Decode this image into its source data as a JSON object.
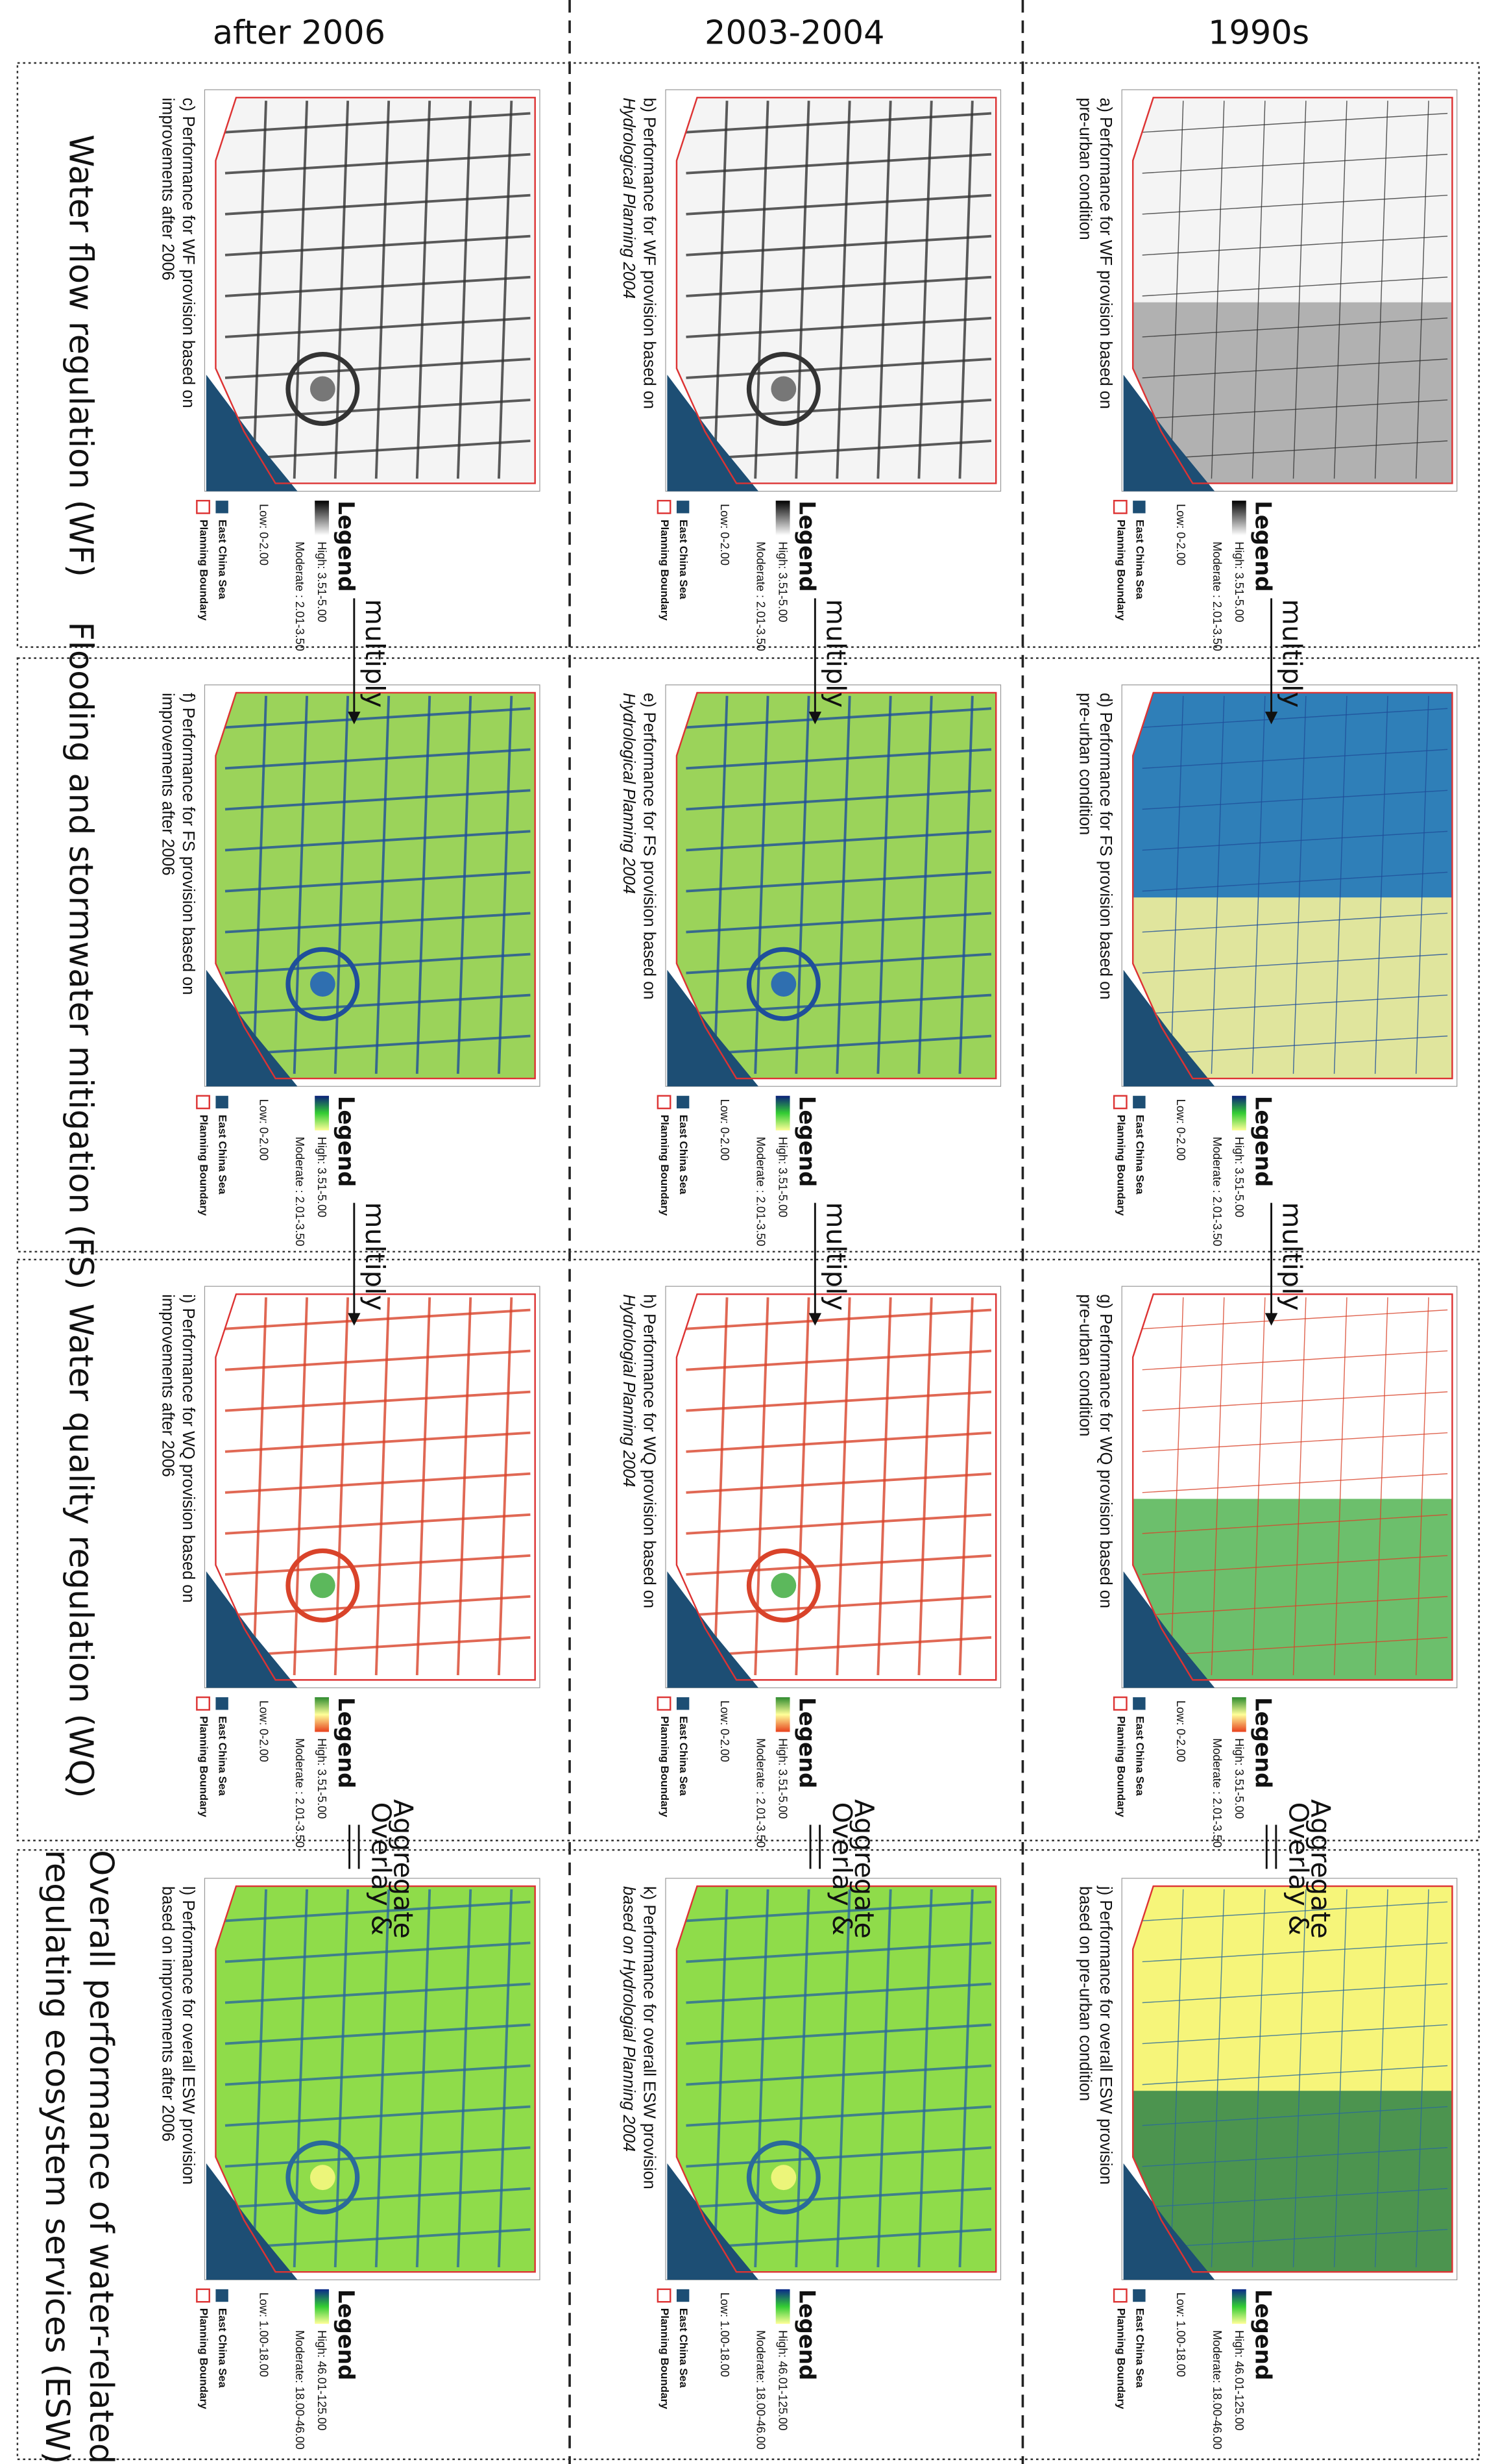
{
  "column_headers": [
    "after 2006",
    "2003-2004",
    "1990s"
  ],
  "connectors": {
    "multiply": "multiply",
    "overlay": [
      "Overlay &",
      "Aggregate"
    ]
  },
  "rows": [
    {
      "label": [
        "Water flow regulation (WF)"
      ],
      "legend": {
        "title": "Legend",
        "high": "High: 3.51-5.00",
        "moderate": "Moderate : 2.01-3.50",
        "low": "Low: 0-2.00",
        "sea": "East China Sea",
        "boundary": "Planning Boundary"
      },
      "panels": [
        {
          "title": [
            "c) Performance for WF provision based on",
            "improvements after 2006"
          ]
        },
        {
          "title": [
            "b) Performance for WF provision based on",
            "Hydrological Planning 2004"
          ]
        },
        {
          "title": [
            "a) Performance for WF provision based on",
            "pre-urban condition"
          ]
        }
      ]
    },
    {
      "label": [
        "Flooding and stormwater mitigation (FS)"
      ],
      "legend": {
        "title": "Legend",
        "high": "High: 3.51-5.00",
        "moderate": "Moderate : 2.01-3.50",
        "low": "Low: 0-2.00",
        "sea": "East China Sea",
        "boundary": "Planning Boundary"
      },
      "panels": [
        {
          "title": [
            "f) Performance for FS provision based on",
            "improvements after 2006"
          ]
        },
        {
          "title": [
            "e) Performance for FS provision based on",
            "Hydrological Planning 2004"
          ]
        },
        {
          "title": [
            "d) Performance for FS provision based on",
            "pre-urban condition"
          ]
        }
      ]
    },
    {
      "label": [
        "Water quality regulation (WQ)"
      ],
      "legend": {
        "title": "Legend",
        "high": "High: 3.51-5.00",
        "moderate": "Moderate : 2.01-3.50",
        "low": "Low: 0-2.00",
        "sea": "East China Sea",
        "boundary": "Planning Boundary"
      },
      "panels": [
        {
          "title": [
            "i) Performance for WQ provision based on",
            "improvements after 2006"
          ]
        },
        {
          "title": [
            "h) Performance for WQ provision based on",
            "Hydrologial Planning 2004"
          ]
        },
        {
          "title": [
            "g) Performance for WQ provision based on",
            "pre-urban condition"
          ]
        }
      ]
    },
    {
      "label": [
        "Overall performance of water-related",
        "regulating ecosystem services (ESW)"
      ],
      "legend": {
        "title": "Legend",
        "high": "High: 46.01-125.00",
        "moderate": "Moderate: 18.00-46.00",
        "low": "Low: 1.00-18.00",
        "sea": "East China Sea",
        "boundary": "Planning Boundary"
      },
      "panels": [
        {
          "title": [
            "l) Performance for overall ESW provision",
            "based on improvements after 2006"
          ]
        },
        {
          "title": [
            "k) Performance for overall ESW provision",
            "based on Hydrologial Planning 2004"
          ]
        },
        {
          "title": [
            "j) Performance for overall ESW provision",
            "based on pre-urban condition"
          ]
        }
      ]
    }
  ]
}
